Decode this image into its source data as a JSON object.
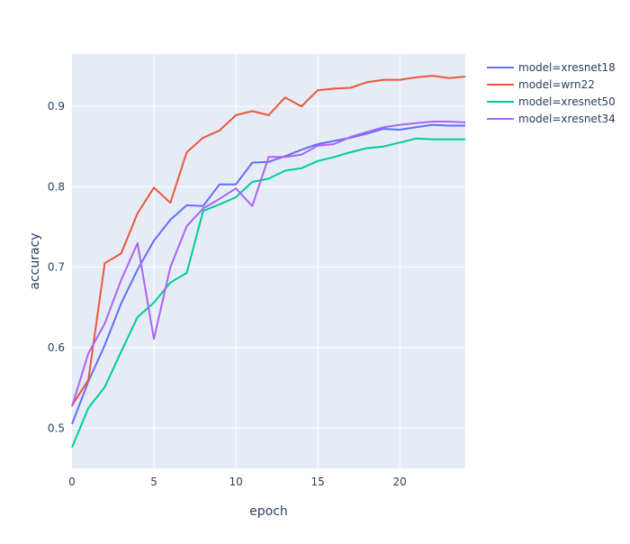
{
  "chart_data": {
    "type": "line",
    "title": "",
    "xlabel": "epoch",
    "ylabel": "accuracy",
    "xlim": [
      0,
      24
    ],
    "ylim": [
      0.45,
      0.965
    ],
    "grid": true,
    "legend_placement": "top-right, outside plot",
    "x_ticks": [
      0,
      5,
      10,
      15,
      20
    ],
    "y_ticks": [
      0.5,
      0.6,
      0.7,
      0.8,
      0.9
    ],
    "x": [
      0,
      1,
      2,
      3,
      4,
      5,
      6,
      7,
      8,
      9,
      10,
      11,
      12,
      13,
      14,
      15,
      16,
      17,
      18,
      19,
      20,
      21,
      22,
      23,
      24
    ],
    "series": [
      {
        "name": "model=xresnet18",
        "color": "#636efa",
        "values": [
          0.505,
          0.558,
          0.603,
          0.655,
          0.697,
          0.733,
          0.759,
          0.777,
          0.776,
          0.803,
          0.803,
          0.83,
          0.831,
          0.838,
          0.846,
          0.853,
          0.857,
          0.861,
          0.866,
          0.872,
          0.871,
          0.874,
          0.877,
          0.876,
          0.876
        ]
      },
      {
        "name": "model=wrn22",
        "color": "#ef553b",
        "values": [
          0.528,
          0.56,
          0.705,
          0.717,
          0.767,
          0.799,
          0.78,
          0.843,
          0.861,
          0.87,
          0.889,
          0.894,
          0.889,
          0.911,
          0.9,
          0.92,
          0.922,
          0.923,
          0.93,
          0.933,
          0.933,
          0.936,
          0.938,
          0.935,
          0.937
        ]
      },
      {
        "name": "model=xresnet50",
        "color": "#00cc96",
        "values": [
          0.476,
          0.525,
          0.551,
          0.595,
          0.638,
          0.656,
          0.681,
          0.693,
          0.77,
          0.778,
          0.787,
          0.806,
          0.81,
          0.82,
          0.823,
          0.832,
          0.837,
          0.843,
          0.848,
          0.85,
          0.855,
          0.86,
          0.859,
          0.859,
          0.859
        ]
      },
      {
        "name": "model=xresnet34",
        "color": "#ab63fa",
        "values": [
          0.527,
          0.593,
          0.63,
          0.684,
          0.73,
          0.611,
          0.7,
          0.751,
          0.773,
          0.785,
          0.798,
          0.776,
          0.837,
          0.837,
          0.84,
          0.851,
          0.853,
          0.862,
          0.868,
          0.874,
          0.877,
          0.879,
          0.881,
          0.881,
          0.88
        ]
      }
    ]
  }
}
